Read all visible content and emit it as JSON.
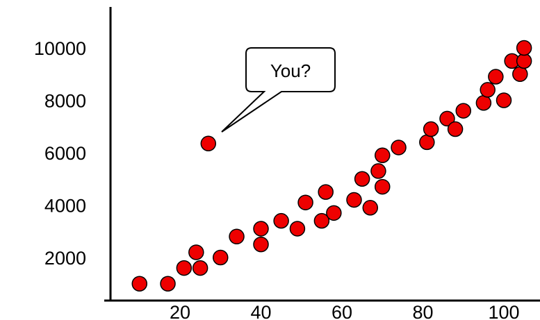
{
  "chart_data": {
    "type": "scatter",
    "title": "",
    "xlabel": "",
    "ylabel": "",
    "xlim": [
      5,
      105
    ],
    "ylim": [
      0,
      11000
    ],
    "x_ticks": [
      20,
      40,
      60,
      80,
      100
    ],
    "y_ticks": [
      2000,
      4000,
      6000,
      8000,
      10000
    ],
    "grid": false,
    "legend": "none",
    "point_color": "#ee0000",
    "series": [
      {
        "x": [
          10,
          17,
          21,
          24,
          25,
          30,
          34,
          40,
          40,
          45,
          49,
          51,
          55,
          56,
          58,
          63,
          65,
          67,
          69,
          70,
          70,
          74,
          81,
          82,
          86,
          88,
          90,
          95,
          96,
          98,
          100,
          102,
          104,
          105,
          105
        ],
        "y": [
          1000,
          1000,
          1600,
          2200,
          1600,
          2000,
          2800,
          2500,
          3100,
          3400,
          3100,
          4100,
          3400,
          4500,
          3700,
          4200,
          5000,
          3900,
          5300,
          4700,
          5900,
          6200,
          6400,
          6900,
          7300,
          6900,
          7600,
          7900,
          8400,
          8900,
          8000,
          9500,
          9000,
          9500,
          10000
        ]
      }
    ],
    "outlier": {
      "x": 27,
      "y": 6350
    },
    "annotations": [
      {
        "text": "You?",
        "points_to": "outlier"
      }
    ]
  }
}
